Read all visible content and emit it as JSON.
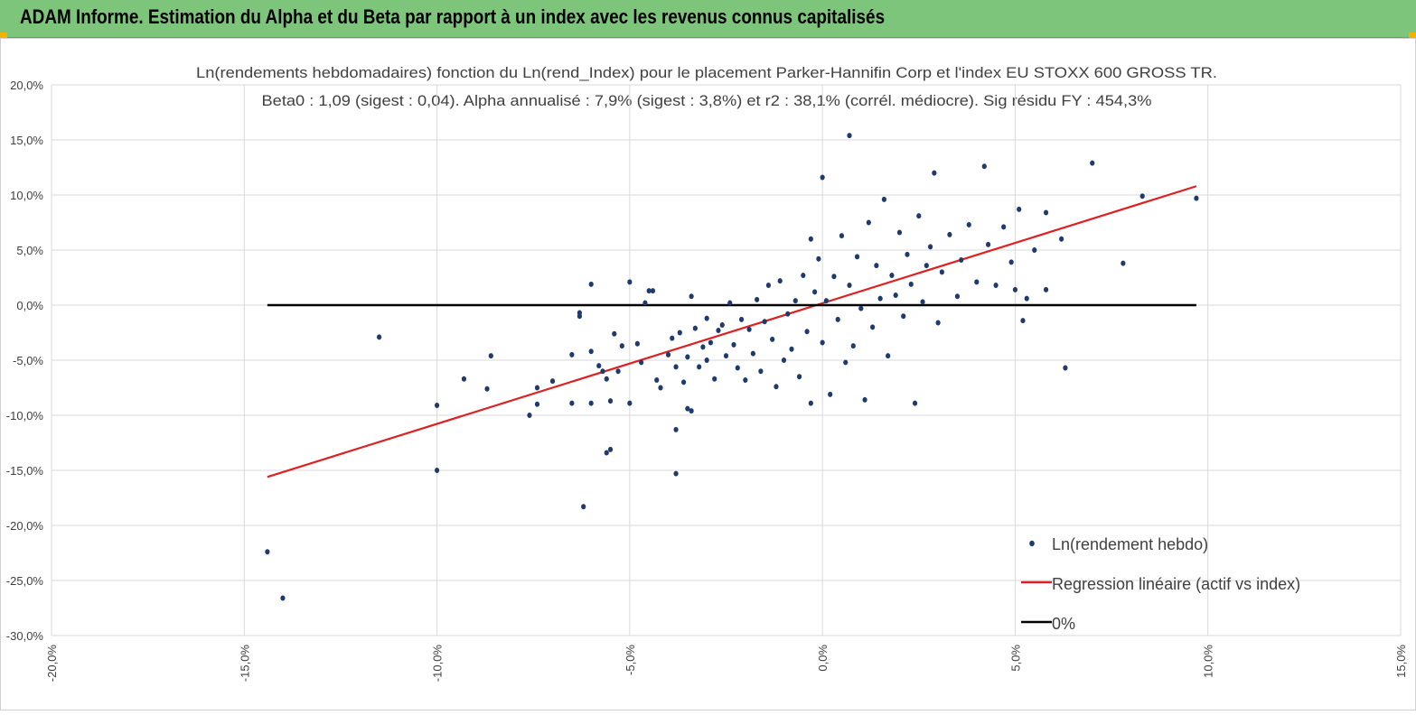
{
  "banner": {
    "title": "ADAM Informe. Estimation du Alpha et du Beta par rapport à un index avec les revenus connus capitalisés",
    "background_color": "#7dc57a",
    "corner_color": "#f0b400"
  },
  "chart_data": {
    "type": "scatter",
    "title": "Ln(rendements hebdomadaires) fonction du Ln(rend_Index) pour le placement Parker-Hannifin Corp et l'index EU STOXX 600 GROSS TR.",
    "subtitle": "Beta0 : 1,09  (sigest : 0,04).  Alpha annualisé : 7,9% (sigest : 3,8%) et r2 : 38,1% (corrél. médiocre). Sig résidu FY : 454,3%",
    "xlabel": "",
    "ylabel": "",
    "xlim": [
      -0.2,
      0.15
    ],
    "ylim": [
      -0.3,
      0.2
    ],
    "x_ticks": [
      -0.2,
      -0.15,
      -0.1,
      -0.05,
      0.0,
      0.05,
      0.1,
      0.15
    ],
    "x_tick_labels": [
      "-20,0%",
      "-15,0%",
      "-10,0%",
      "-5,0%",
      "0,0%",
      "5,0%",
      "10,0%",
      "15,0%"
    ],
    "y_ticks": [
      0.2,
      0.15,
      0.1,
      0.05,
      0.0,
      -0.05,
      -0.1,
      -0.15,
      -0.2,
      -0.25,
      -0.3
    ],
    "y_tick_labels": [
      "20,0%",
      "15,0%",
      "10,0%",
      "5,0%",
      "0,0%",
      "-5,0%",
      "-10,0%",
      "-15,0%",
      "-20,0%",
      "-25,0%",
      "-30,0%"
    ],
    "grid": true,
    "legend_position": "bottom-right",
    "series": [
      {
        "name": "Ln(rendement hebdo)",
        "kind": "scatter",
        "color": "#1f3b6e",
        "points": [
          [
            -0.144,
            -0.224
          ],
          [
            -0.14,
            -0.266
          ],
          [
            -0.115,
            -0.029
          ],
          [
            -0.1,
            -0.091
          ],
          [
            -0.1,
            -0.15
          ],
          [
            -0.093,
            -0.067
          ],
          [
            -0.087,
            -0.076
          ],
          [
            -0.086,
            -0.046
          ],
          [
            -0.076,
            -0.1
          ],
          [
            -0.074,
            -0.09
          ],
          [
            -0.074,
            -0.075
          ],
          [
            -0.07,
            -0.069
          ],
          [
            -0.065,
            -0.045
          ],
          [
            -0.065,
            -0.089
          ],
          [
            -0.063,
            -0.007
          ],
          [
            -0.063,
            -0.01
          ],
          [
            -0.062,
            -0.183
          ],
          [
            -0.06,
            -0.089
          ],
          [
            -0.06,
            0.019
          ],
          [
            -0.06,
            -0.042
          ],
          [
            -0.058,
            -0.055
          ],
          [
            -0.057,
            -0.06
          ],
          [
            -0.056,
            -0.067
          ],
          [
            -0.055,
            -0.087
          ],
          [
            -0.056,
            -0.134
          ],
          [
            -0.055,
            -0.131
          ],
          [
            -0.054,
            -0.026
          ],
          [
            -0.053,
            -0.06
          ],
          [
            -0.052,
            -0.037
          ],
          [
            -0.05,
            0.021
          ],
          [
            -0.05,
            -0.089
          ],
          [
            -0.048,
            -0.035
          ],
          [
            -0.047,
            -0.052
          ],
          [
            -0.046,
            0.002
          ],
          [
            -0.045,
            0.013
          ],
          [
            -0.044,
            0.013
          ],
          [
            -0.043,
            -0.068
          ],
          [
            -0.042,
            -0.075
          ],
          [
            -0.04,
            -0.045
          ],
          [
            -0.039,
            -0.03
          ],
          [
            -0.038,
            -0.113
          ],
          [
            -0.038,
            -0.153
          ],
          [
            -0.038,
            -0.056
          ],
          [
            -0.037,
            -0.025
          ],
          [
            -0.036,
            -0.07
          ],
          [
            -0.035,
            -0.047
          ],
          [
            -0.035,
            -0.094
          ],
          [
            -0.034,
            -0.096
          ],
          [
            -0.034,
            0.008
          ],
          [
            -0.033,
            -0.021
          ],
          [
            -0.032,
            -0.056
          ],
          [
            -0.031,
            -0.038
          ],
          [
            -0.03,
            -0.05
          ],
          [
            -0.03,
            -0.012
          ],
          [
            -0.029,
            -0.034
          ],
          [
            -0.028,
            -0.067
          ],
          [
            -0.027,
            -0.023
          ],
          [
            -0.026,
            -0.018
          ],
          [
            -0.025,
            -0.046
          ],
          [
            -0.024,
            0.002
          ],
          [
            -0.023,
            -0.036
          ],
          [
            -0.022,
            -0.057
          ],
          [
            -0.021,
            -0.013
          ],
          [
            -0.02,
            -0.068
          ],
          [
            -0.019,
            -0.022
          ],
          [
            -0.018,
            -0.044
          ],
          [
            -0.017,
            0.005
          ],
          [
            -0.016,
            -0.06
          ],
          [
            -0.015,
            -0.015
          ],
          [
            -0.014,
            0.018
          ],
          [
            -0.013,
            -0.031
          ],
          [
            -0.012,
            -0.074
          ],
          [
            -0.011,
            0.022
          ],
          [
            -0.01,
            -0.05
          ],
          [
            -0.009,
            -0.008
          ],
          [
            -0.008,
            -0.04
          ],
          [
            -0.007,
            0.004
          ],
          [
            -0.006,
            -0.065
          ],
          [
            -0.005,
            0.027
          ],
          [
            -0.004,
            -0.024
          ],
          [
            -0.003,
            0.06
          ],
          [
            -0.003,
            -0.089
          ],
          [
            -0.002,
            0.012
          ],
          [
            -0.001,
            0.042
          ],
          [
            0.0,
            -0.034
          ],
          [
            0.0,
            0.116
          ],
          [
            0.001,
            0.004
          ],
          [
            0.002,
            -0.081
          ],
          [
            0.003,
            0.026
          ],
          [
            0.004,
            -0.013
          ],
          [
            0.005,
            0.063
          ],
          [
            0.006,
            -0.052
          ],
          [
            0.007,
            0.018
          ],
          [
            0.007,
            0.154
          ],
          [
            0.008,
            -0.037
          ],
          [
            0.009,
            0.044
          ],
          [
            0.01,
            -0.003
          ],
          [
            0.011,
            -0.086
          ],
          [
            0.012,
            0.075
          ],
          [
            0.013,
            -0.02
          ],
          [
            0.014,
            0.036
          ],
          [
            0.015,
            0.006
          ],
          [
            0.016,
            0.096
          ],
          [
            0.017,
            -0.046
          ],
          [
            0.018,
            0.027
          ],
          [
            0.019,
            0.009
          ],
          [
            0.02,
            0.066
          ],
          [
            0.021,
            -0.01
          ],
          [
            0.022,
            0.046
          ],
          [
            0.023,
            0.019
          ],
          [
            0.024,
            -0.089
          ],
          [
            0.025,
            0.081
          ],
          [
            0.026,
            0.003
          ],
          [
            0.027,
            0.036
          ],
          [
            0.028,
            0.053
          ],
          [
            0.029,
            0.12
          ],
          [
            0.03,
            -0.016
          ],
          [
            0.031,
            0.03
          ],
          [
            0.033,
            0.064
          ],
          [
            0.035,
            0.008
          ],
          [
            0.036,
            0.041
          ],
          [
            0.038,
            0.073
          ],
          [
            0.04,
            0.021
          ],
          [
            0.042,
            0.126
          ],
          [
            0.043,
            0.055
          ],
          [
            0.045,
            0.018
          ],
          [
            0.047,
            0.071
          ],
          [
            0.049,
            0.039
          ],
          [
            0.05,
            0.014
          ],
          [
            0.051,
            0.087
          ],
          [
            0.052,
            -0.014
          ],
          [
            0.053,
            0.006
          ],
          [
            0.055,
            0.05
          ],
          [
            0.058,
            0.084
          ],
          [
            0.058,
            0.014
          ],
          [
            0.062,
            0.06
          ],
          [
            0.063,
            -0.057
          ],
          [
            0.07,
            0.129
          ],
          [
            0.078,
            0.038
          ],
          [
            0.083,
            0.099
          ],
          [
            0.097,
            0.097
          ]
        ]
      },
      {
        "name": "Regression linéaire (actif vs index)",
        "kind": "line",
        "color": "#e02020",
        "points": [
          [
            -0.144,
            -0.156
          ],
          [
            0.097,
            0.108
          ]
        ]
      },
      {
        "name": "0%",
        "kind": "line",
        "color": "#000000",
        "points": [
          [
            -0.144,
            0.0
          ],
          [
            0.097,
            0.0
          ]
        ]
      }
    ]
  }
}
